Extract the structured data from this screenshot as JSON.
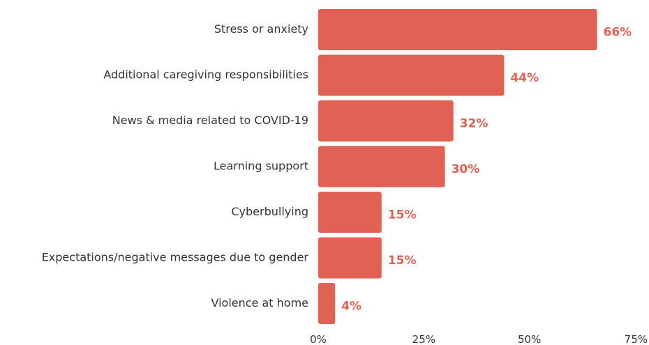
{
  "chart_data": {
    "type": "bar",
    "orientation": "horizontal",
    "categories": [
      "Stress or anxiety",
      "Additional caregiving responsibilities",
      "News & media related to COVID-19",
      "Learning support",
      "Cyberbullying",
      "Expectations/negative messages due to gender",
      "Violence at home"
    ],
    "values": [
      66,
      44,
      32,
      30,
      15,
      15,
      4
    ],
    "value_labels": [
      "66%",
      "44%",
      "32%",
      "30%",
      "15%",
      "15%",
      "4%"
    ],
    "xlim": [
      0,
      75
    ],
    "x_ticks": [
      0,
      25,
      50,
      75
    ],
    "x_tick_labels": [
      "0%",
      "25%",
      "50%",
      "75%"
    ],
    "grid": false,
    "legend": "none",
    "colors": {
      "bar": "#E26155",
      "value_label": "#E26155",
      "text": "#333333"
    }
  }
}
